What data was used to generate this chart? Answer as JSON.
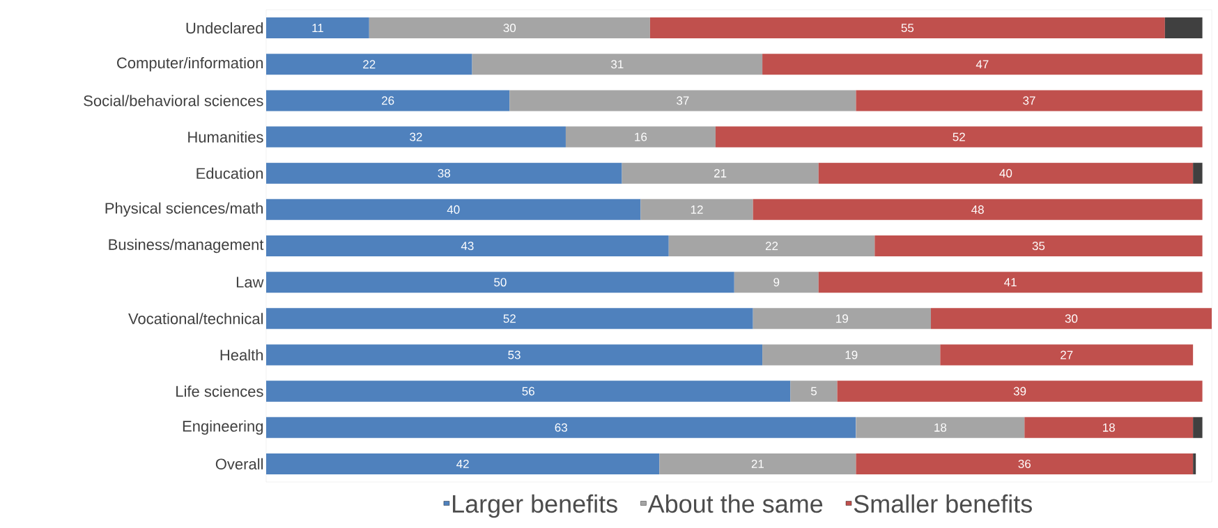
{
  "chart_data": {
    "type": "bar",
    "orientation": "horizontal",
    "stacked": true,
    "legend": "bottom",
    "tick_labels": "y",
    "xlim": [
      0,
      101
    ],
    "categories": [
      "Undeclared",
      "Computer/information",
      "Social/behavioral sciences",
      "Humanities",
      "Education",
      "Physical sciences/math",
      "Business/management",
      "Law",
      "Vocational/technical",
      "Health",
      "Life sciences",
      "Engineering",
      "Overall"
    ],
    "series": [
      {
        "name": "Larger benefits",
        "color": "#4f81bd",
        "values": [
          11,
          22,
          26,
          32,
          38,
          40,
          43,
          50,
          52,
          53,
          56,
          63,
          42
        ],
        "value_labels": [
          "11",
          "22",
          "26",
          "32",
          "38",
          "40",
          "43",
          "50",
          "52",
          "53",
          "56",
          "63",
          "42"
        ]
      },
      {
        "name": "About the same",
        "color": "#a5a5a5",
        "values": [
          30,
          31,
          37,
          16,
          21,
          12,
          22,
          9,
          19,
          19,
          5,
          18,
          21
        ],
        "value_labels": [
          "30",
          "31",
          "37",
          "16",
          "21",
          "12",
          "22",
          "9",
          "19",
          "19",
          "5",
          "18",
          "21"
        ]
      },
      {
        "name": "Smaller benefits",
        "color": "#c0504d",
        "values": [
          55,
          47,
          37,
          52,
          40,
          48,
          35,
          41,
          30,
          27,
          39,
          18,
          36
        ],
        "value_labels": [
          "55",
          "47",
          "37",
          "52",
          "40",
          "48",
          "35",
          "41",
          "30",
          "27",
          "39",
          "18",
          "36"
        ]
      },
      {
        "color": "#404040",
        "values": [
          4,
          0,
          0,
          0,
          1,
          0,
          0,
          0,
          0,
          0,
          0,
          1,
          0.3
        ]
      }
    ]
  }
}
